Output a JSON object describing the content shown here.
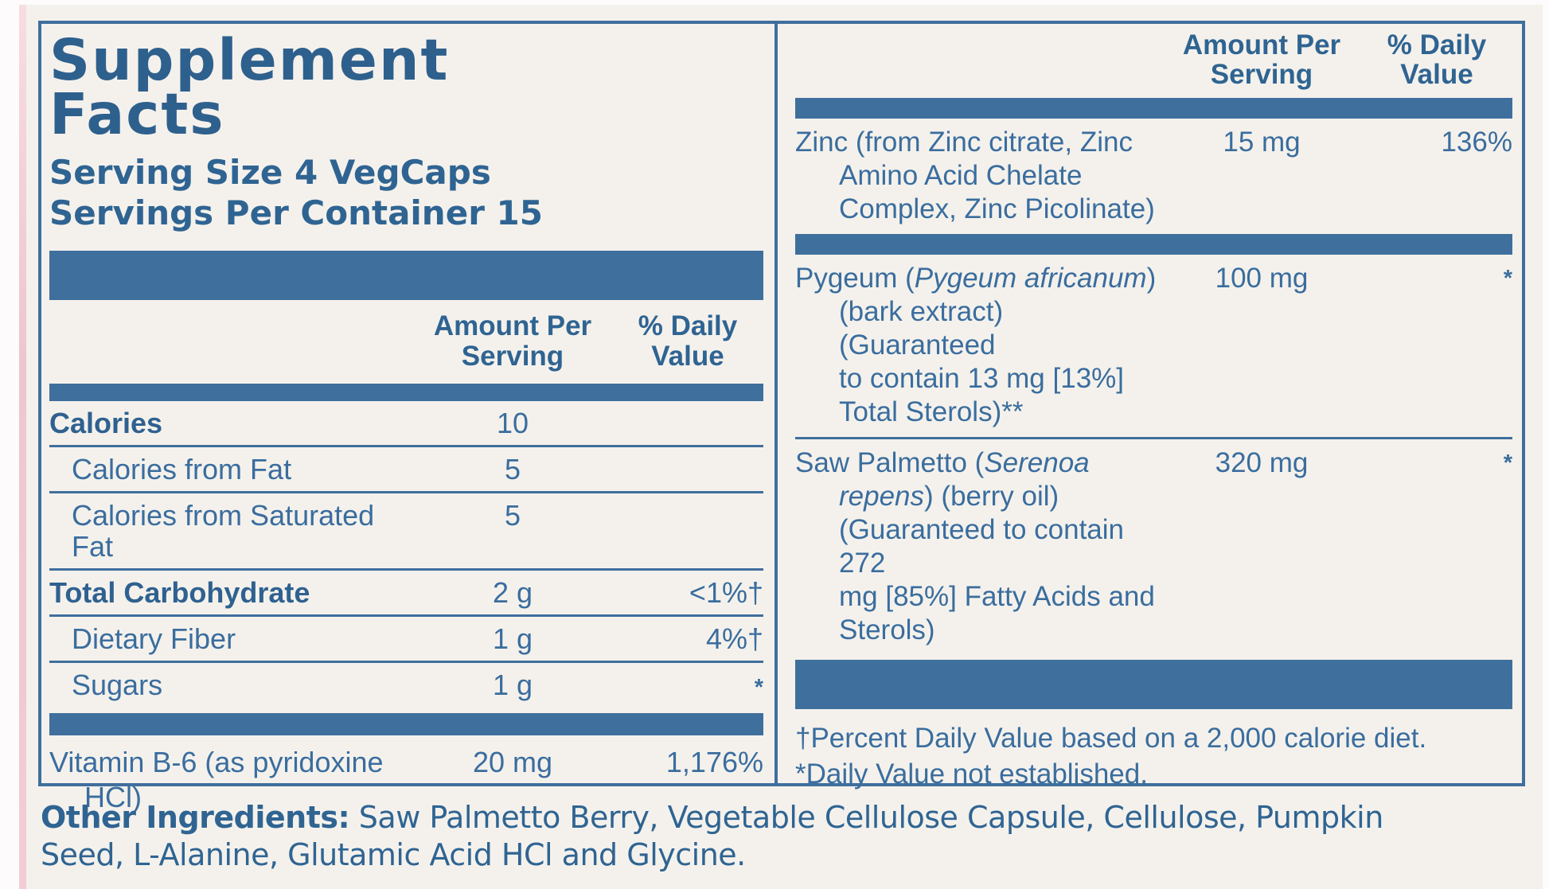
{
  "supplement_facts": {
    "title_lines": [
      "Supplement",
      "Facts"
    ],
    "serving_size": "Serving Size 4 VegCaps",
    "servings_per_container": "Servings Per Container 15",
    "columns": {
      "amount_l1": "Amount Per",
      "amount_l2": "Serving",
      "daily_l1": "% Daily",
      "daily_l2": "Value"
    },
    "nutrition_rows": [
      {
        "name": "Calories",
        "bold": true,
        "indent": false,
        "amount": "10",
        "daily_value": ""
      },
      {
        "name": "Calories from Fat",
        "bold": false,
        "indent": true,
        "amount": "5",
        "daily_value": ""
      },
      {
        "name": "Calories from Saturated Fat",
        "bold": false,
        "indent": true,
        "amount": "5",
        "daily_value": ""
      },
      {
        "name": "Total Carbohydrate",
        "bold": true,
        "indent": false,
        "amount": "2 g",
        "daily_value": "<1%†"
      },
      {
        "name": "Dietary Fiber",
        "bold": false,
        "indent": true,
        "amount": "1 g",
        "daily_value": "4%†"
      },
      {
        "name": "Sugars",
        "bold": false,
        "indent": true,
        "amount": "1 g",
        "daily_value": "*"
      }
    ],
    "vitamin_b6": {
      "name_lines": [
        "Vitamin B-6 (as pyridoxine",
        "HCl)"
      ],
      "amount": "20 mg",
      "daily_value": "1,176%"
    },
    "ingredient_rows": [
      {
        "name_lines": [
          [
            {
              "t": "Zinc (from Zinc citrate, Zinc"
            }
          ],
          [
            {
              "t": "Amino Acid Chelate"
            }
          ],
          [
            {
              "t": "Complex, Zinc Picolinate)"
            }
          ]
        ],
        "amount": "15 mg",
        "daily_value": "136%",
        "separator_after": "thick-bar"
      },
      {
        "name_lines": [
          [
            {
              "t": "Pygeum ("
            },
            {
              "t": "Pygeum africanum",
              "i": true
            },
            {
              "t": ")"
            }
          ],
          [
            {
              "t": "(bark extract) (Guaranteed"
            }
          ],
          [
            {
              "t": "to contain 13 mg [13%]"
            }
          ],
          [
            {
              "t": "Total Sterols)**"
            }
          ]
        ],
        "amount": "100 mg",
        "daily_value": "*",
        "separator_after": "thin-line"
      },
      {
        "name_lines": [
          [
            {
              "t": "Saw Palmetto ("
            },
            {
              "t": "Serenoa",
              "i": true
            }
          ],
          [
            {
              "t": "repens",
              "i": true
            },
            {
              "t": ") (berry oil)"
            }
          ],
          [
            {
              "t": "(Guaranteed to contain 272"
            }
          ],
          [
            {
              "t": "mg [85%] Fatty Acids and"
            }
          ],
          [
            {
              "t": "Sterols)"
            }
          ]
        ],
        "amount": "320 mg",
        "daily_value": "*",
        "separator_after": "thick-bar-tall"
      }
    ],
    "footnotes": [
      "†Percent Daily Value based on a 2,000 calorie diet.",
      "*Daily Value not established."
    ],
    "other_ingredients_lines": [
      [
        {
          "t": "Other Ingredients:",
          "b": true
        },
        {
          "t": " Saw Palmetto Berry, Vegetable Cellulose Capsule, Cellulose, Pumpkin"
        }
      ],
      [
        {
          "t": "Seed, L-Alanine, Glutamic Acid HCl and Glycine."
        }
      ]
    ],
    "colors": {
      "text_blue": "#3a6d9e",
      "bar_blue": "#3f6f9d",
      "label_background": "#f4f1ec",
      "pink_edge": "#eec6ce"
    }
  }
}
